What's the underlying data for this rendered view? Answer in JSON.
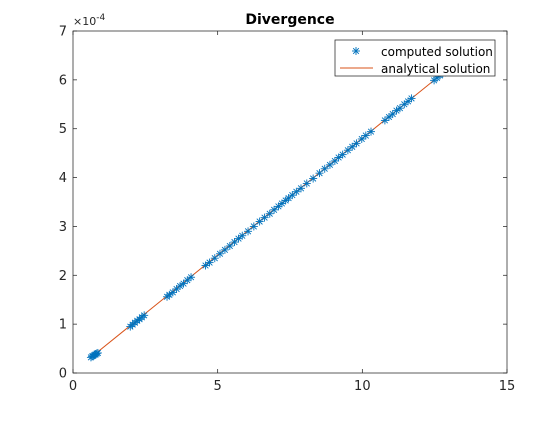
{
  "chart_data": {
    "type": "scatter",
    "title": "Divergence",
    "xlabel": "",
    "ylabel": "",
    "xlim": [
      0,
      15
    ],
    "ylim": [
      0,
      7
    ],
    "y_scale_label": "×10",
    "y_scale_exponent": "-4",
    "x_ticks": [
      "0",
      "5",
      "10",
      "15"
    ],
    "y_ticks": [
      "0",
      "1",
      "2",
      "3",
      "4",
      "5",
      "6",
      "7"
    ],
    "x_tick_values": [
      0,
      5,
      10,
      15
    ],
    "y_tick_values": [
      0,
      1,
      2,
      3,
      4,
      5,
      6,
      7
    ],
    "grid": false,
    "legend_position": "top-right",
    "series": [
      {
        "name": "computed solution",
        "kind": "markers",
        "marker": "asterisk",
        "color": "#0072BD",
        "x": [
          0.62,
          0.66,
          0.7,
          0.74,
          0.78,
          0.82,
          0.86,
          1.98,
          2.06,
          2.14,
          2.22,
          2.3,
          2.38,
          2.46,
          3.25,
          3.33,
          3.45,
          3.58,
          3.7,
          3.82,
          3.95,
          4.08,
          4.58,
          4.72,
          4.9,
          5.08,
          5.25,
          5.42,
          5.58,
          5.72,
          5.85,
          6.05,
          6.25,
          6.45,
          6.62,
          6.8,
          6.95,
          7.1,
          7.22,
          7.35,
          7.45,
          7.58,
          7.72,
          7.88,
          8.08,
          8.3,
          8.52,
          8.7,
          8.88,
          9.05,
          9.18,
          9.32,
          9.5,
          9.65,
          9.8,
          9.98,
          10.12,
          10.3,
          10.78,
          10.92,
          11.05,
          11.18,
          11.3,
          11.45,
          11.58,
          11.7,
          12.48,
          12.58,
          12.68,
          12.78,
          12.9,
          13.02
        ],
        "y": [
          0.32,
          0.34,
          0.35,
          0.37,
          0.38,
          0.4,
          0.41,
          0.95,
          0.99,
          1.03,
          1.07,
          1.1,
          1.14,
          1.18,
          1.56,
          1.6,
          1.65,
          1.72,
          1.78,
          1.83,
          1.9,
          1.96,
          2.2,
          2.26,
          2.35,
          2.44,
          2.52,
          2.6,
          2.68,
          2.75,
          2.81,
          2.9,
          3.0,
          3.1,
          3.18,
          3.26,
          3.34,
          3.41,
          3.47,
          3.53,
          3.58,
          3.64,
          3.71,
          3.78,
          3.88,
          3.98,
          4.09,
          4.18,
          4.26,
          4.34,
          4.41,
          4.47,
          4.56,
          4.63,
          4.7,
          4.79,
          4.86,
          4.94,
          5.17,
          5.24,
          5.3,
          5.37,
          5.42,
          5.5,
          5.56,
          5.62,
          5.99,
          6.04,
          6.09,
          6.13,
          6.19,
          6.25
        ]
      },
      {
        "name": "analytical solution",
        "kind": "line",
        "color": "#D95319",
        "x": [
          0.62,
          13.02
        ],
        "y": [
          0.32,
          6.25
        ]
      }
    ]
  }
}
